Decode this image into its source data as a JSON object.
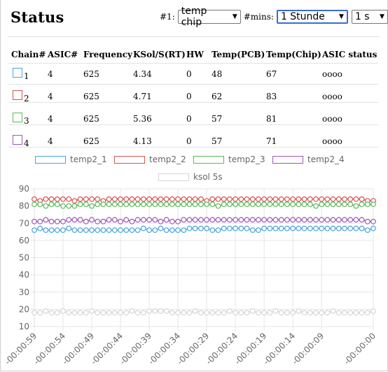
{
  "header": {
    "title": "Status"
  },
  "controls": {
    "source_label": "#1:",
    "source_value": "temp chip",
    "mins_label": "#mins:",
    "mins_value": "1 Stunde",
    "interval_value": "1 s"
  },
  "table": {
    "headers": [
      "Chain#",
      "ASIC#",
      "Frequency",
      "KSol/S(RT)",
      "HW",
      "Temp(PCB)",
      "Temp(Chip)",
      "ASIC status"
    ],
    "rows": [
      {
        "chain": "1",
        "asic": "4",
        "freq": "625",
        "ksol": "4.34",
        "hw": "0",
        "pcb": "48",
        "chip": "67",
        "status": "oooo",
        "color": "#4aa3df"
      },
      {
        "chain": "2",
        "asic": "4",
        "freq": "625",
        "ksol": "4.71",
        "hw": "0",
        "pcb": "62",
        "chip": "83",
        "status": "oooo",
        "color": "#d9534f"
      },
      {
        "chain": "3",
        "asic": "4",
        "freq": "625",
        "ksol": "5.36",
        "hw": "0",
        "pcb": "57",
        "chip": "81",
        "status": "oooo",
        "color": "#5cb85c"
      },
      {
        "chain": "4",
        "asic": "4",
        "freq": "625",
        "ksol": "4.13",
        "hw": "0",
        "pcb": "57",
        "chip": "71",
        "status": "oooo",
        "color": "#9b59b6"
      }
    ]
  },
  "chart_data": {
    "type": "line",
    "title": "",
    "xlabel": "",
    "ylabel": "",
    "ylim": [
      10,
      90
    ],
    "yticks": [
      10,
      20,
      30,
      40,
      50,
      60,
      70,
      80,
      90
    ],
    "xticks": [
      "-00:00:59",
      "-00:00:54",
      "-00:00:49",
      "-00:00:44",
      "-00:00:39",
      "-00:00:34",
      "-00:00:29",
      "-00:00:24",
      "-00:00:19",
      "-00:00:14",
      "-00:00:09",
      "-00:00:00"
    ],
    "x": [
      -59,
      -58,
      -57,
      -56,
      -55,
      -54,
      -53,
      -52,
      -51,
      -50,
      -49,
      -48,
      -47,
      -46,
      -45,
      -44,
      -43,
      -42,
      -41,
      -40,
      -39,
      -38,
      -37,
      -36,
      -35,
      -34,
      -33,
      -32,
      -31,
      -30,
      -29,
      -28,
      -27,
      -26,
      -25,
      -24,
      -23,
      -22,
      -21,
      -20,
      -19,
      -18,
      -17,
      -16,
      -15,
      -14,
      -13,
      -12,
      -11,
      -10,
      -9,
      -8,
      -7,
      -6,
      -5,
      -4,
      -3,
      -2,
      -1,
      0
    ],
    "grid": true,
    "legend": "top",
    "series": [
      {
        "name": "temp2_1",
        "color": "#4aa3df",
        "values": [
          66,
          67,
          66,
          66,
          66,
          66,
          67,
          66,
          66,
          66,
          66,
          66,
          66,
          66,
          66,
          66,
          66,
          66,
          66,
          67,
          66,
          66,
          67,
          66,
          66,
          66,
          66,
          67,
          67,
          67,
          67,
          66,
          66,
          67,
          67,
          67,
          67,
          67,
          66,
          66,
          67,
          67,
          67,
          67,
          67,
          67,
          67,
          67,
          67,
          67,
          67,
          67,
          67,
          67,
          67,
          67,
          67,
          67,
          66,
          67
        ]
      },
      {
        "name": "temp2_2",
        "color": "#d9534f",
        "values": [
          84,
          83,
          84,
          84,
          84,
          84,
          84,
          83,
          84,
          84,
          84,
          84,
          83,
          84,
          84,
          84,
          84,
          84,
          84,
          84,
          84,
          84,
          84,
          84,
          84,
          84,
          84,
          84,
          84,
          84,
          83,
          84,
          84,
          84,
          84,
          84,
          84,
          84,
          84,
          84,
          84,
          84,
          84,
          84,
          84,
          84,
          84,
          84,
          84,
          84,
          84,
          84,
          84,
          84,
          84,
          84,
          84,
          84,
          83,
          83
        ]
      },
      {
        "name": "temp2_3",
        "color": "#5cb85c",
        "values": [
          81,
          81,
          80,
          81,
          81,
          80,
          80,
          80,
          81,
          81,
          80,
          81,
          81,
          81,
          81,
          81,
          81,
          81,
          81,
          81,
          81,
          81,
          81,
          81,
          81,
          81,
          81,
          81,
          81,
          81,
          81,
          81,
          80,
          81,
          81,
          81,
          81,
          81,
          81,
          81,
          81,
          81,
          81,
          81,
          81,
          81,
          81,
          81,
          81,
          80,
          81,
          81,
          81,
          81,
          81,
          81,
          80,
          81,
          81,
          81
        ]
      },
      {
        "name": "temp2_4",
        "color": "#9b59b6",
        "values": [
          71,
          71,
          72,
          71,
          71,
          71,
          72,
          72,
          72,
          71,
          72,
          71,
          71,
          72,
          72,
          71,
          72,
          71,
          72,
          72,
          72,
          72,
          71,
          72,
          71,
          71,
          72,
          72,
          72,
          72,
          72,
          72,
          72,
          72,
          72,
          72,
          72,
          72,
          72,
          72,
          72,
          72,
          72,
          72,
          72,
          72,
          72,
          72,
          72,
          72,
          72,
          72,
          72,
          72,
          72,
          72,
          72,
          72,
          71,
          71
        ]
      },
      {
        "name": "ksol 5s",
        "color": "#d5d5d5",
        "values": [
          18,
          18,
          19,
          18,
          18,
          19,
          18,
          18,
          18,
          18,
          19,
          18,
          18,
          18,
          18,
          18,
          18,
          19,
          18,
          18,
          19,
          19,
          19,
          19,
          18,
          18,
          18,
          18,
          19,
          18,
          18,
          18,
          18,
          18,
          19,
          18,
          18,
          18,
          19,
          18,
          18,
          18,
          19,
          18,
          18,
          18,
          19,
          18,
          18,
          18,
          18,
          18,
          19,
          18,
          18,
          18,
          18,
          18,
          18,
          19
        ]
      }
    ]
  }
}
